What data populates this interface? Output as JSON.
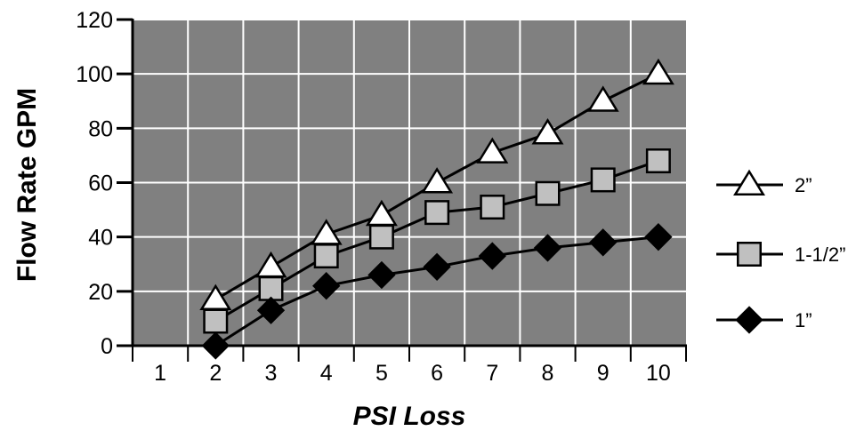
{
  "chart_data": {
    "type": "line",
    "xlabel": "PSI Loss",
    "ylabel": "Flow Rate GPM",
    "x_ticks": [
      "1",
      "2",
      "3",
      "4",
      "5",
      "6",
      "7",
      "8",
      "9",
      "10"
    ],
    "y_ticks": [
      "0",
      "20",
      "40",
      "60",
      "80",
      "100",
      "120"
    ],
    "xlim": [
      0.5,
      10.5
    ],
    "ylim": [
      0,
      120
    ],
    "grid": true,
    "plot_background": "#808080",
    "legend_position": "right",
    "series": [
      {
        "name": "2”",
        "marker": "triangle",
        "fill": "#ffffff",
        "x": [
          2,
          3,
          4,
          5,
          6,
          7,
          8,
          9,
          10
        ],
        "values": [
          17,
          29,
          41,
          48,
          60,
          71,
          78,
          90,
          100
        ]
      },
      {
        "name": "1-1/2”",
        "marker": "square",
        "fill": "#c0c0c0",
        "x": [
          2,
          3,
          4,
          5,
          6,
          7,
          8,
          9,
          10
        ],
        "values": [
          9,
          21,
          33,
          40,
          49,
          51,
          56,
          61,
          68
        ]
      },
      {
        "name": "1”",
        "marker": "diamond",
        "fill": "#000000",
        "x": [
          2,
          3,
          4,
          5,
          6,
          7,
          8,
          9,
          10
        ],
        "values": [
          0,
          13,
          22,
          26,
          29,
          33,
          36,
          38,
          40
        ]
      }
    ]
  }
}
